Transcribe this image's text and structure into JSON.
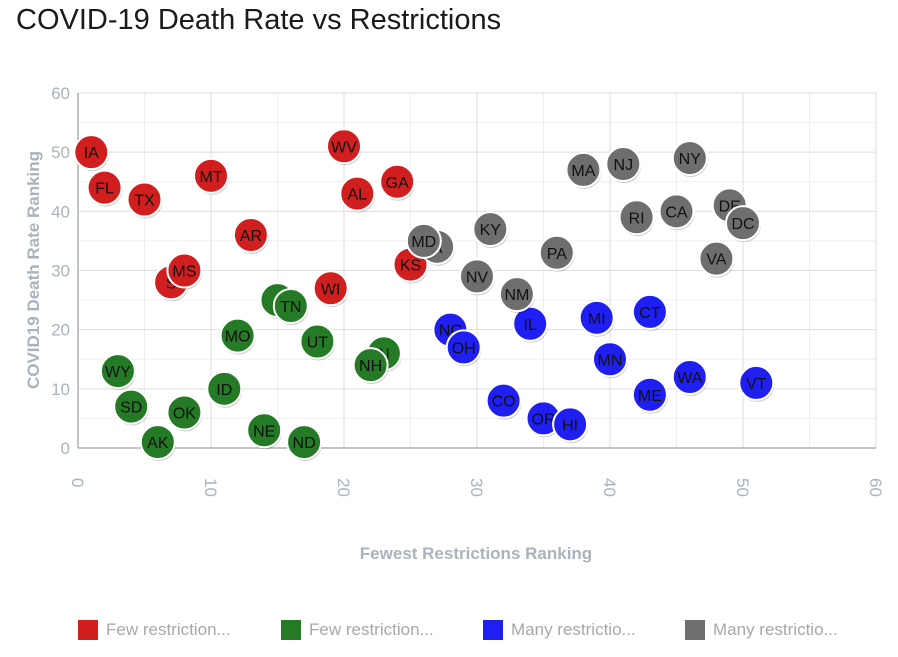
{
  "chart_data": {
    "type": "scatter",
    "title": "COVID-19 Death Rate vs Restrictions",
    "xlabel": "Fewest Restrictions Ranking",
    "ylabel": "COVID19 Death Rate Ranking",
    "xlim": [
      0,
      60
    ],
    "ylim": [
      0,
      60
    ],
    "x_ticks": [
      0,
      10,
      20,
      30,
      40,
      50,
      60
    ],
    "y_ticks": [
      0,
      10,
      20,
      30,
      40,
      50,
      60
    ],
    "grid": true,
    "legend_position": "bottom",
    "series": [
      {
        "name": "Few restriction...",
        "color": "#d11f1f",
        "points": [
          {
            "label": "IA",
            "x": 1,
            "y": 50
          },
          {
            "label": "FL",
            "x": 2,
            "y": 44
          },
          {
            "label": "TX",
            "x": 5,
            "y": 42
          },
          {
            "label": "S",
            "x": 7,
            "y": 28
          },
          {
            "label": "MS",
            "x": 8,
            "y": 30
          },
          {
            "label": "MT",
            "x": 10,
            "y": 46
          },
          {
            "label": "AR",
            "x": 13,
            "y": 36
          },
          {
            "label": "WI",
            "x": 19,
            "y": 27
          },
          {
            "label": "WV",
            "x": 20,
            "y": 51
          },
          {
            "label": "AL",
            "x": 21,
            "y": 43
          },
          {
            "label": "GA",
            "x": 24,
            "y": 45
          },
          {
            "label": "KS",
            "x": 25,
            "y": 31
          }
        ]
      },
      {
        "name": "Few restriction...",
        "color": "#257a25",
        "points": [
          {
            "label": "WY",
            "x": 3,
            "y": 13
          },
          {
            "label": "SD",
            "x": 4,
            "y": 7
          },
          {
            "label": "AK",
            "x": 6,
            "y": 1
          },
          {
            "label": "OK",
            "x": 8,
            "y": 6
          },
          {
            "label": "ID",
            "x": 11,
            "y": 10
          },
          {
            "label": "MO",
            "x": 12,
            "y": 19
          },
          {
            "label": "NE",
            "x": 14,
            "y": 3
          },
          {
            "label": "A",
            "x": 15,
            "y": 25
          },
          {
            "label": "TN",
            "x": 16,
            "y": 24
          },
          {
            "label": "ND",
            "x": 17,
            "y": 1
          },
          {
            "label": "UT",
            "x": 18,
            "y": 18
          },
          {
            "label": "N",
            "x": 23,
            "y": 16
          },
          {
            "label": "NH",
            "x": 22,
            "y": 14
          }
        ]
      },
      {
        "name": "Many restrictio...",
        "color": "#1f1ff2",
        "points": [
          {
            "label": "NC",
            "x": 28,
            "y": 20
          },
          {
            "label": "OH",
            "x": 29,
            "y": 17
          },
          {
            "label": "CO",
            "x": 32,
            "y": 8
          },
          {
            "label": "IL",
            "x": 34,
            "y": 21
          },
          {
            "label": "OR",
            "x": 35,
            "y": 5
          },
          {
            "label": "HI",
            "x": 37,
            "y": 4
          },
          {
            "label": "MI",
            "x": 39,
            "y": 22
          },
          {
            "label": "MN",
            "x": 40,
            "y": 15
          },
          {
            "label": "CT",
            "x": 43,
            "y": 23
          },
          {
            "label": "ME",
            "x": 43,
            "y": 9
          },
          {
            "label": "WA",
            "x": 46,
            "y": 12
          },
          {
            "label": "VT",
            "x": 51,
            "y": 11
          }
        ]
      },
      {
        "name": "Many restrictio...",
        "color": "#6e6e6e",
        "points": [
          {
            "label": "A",
            "x": 27,
            "y": 34
          },
          {
            "label": "MD",
            "x": 26,
            "y": 35
          },
          {
            "label": "NV",
            "x": 30,
            "y": 29
          },
          {
            "label": "KY",
            "x": 31,
            "y": 37
          },
          {
            "label": "NM",
            "x": 33,
            "y": 26
          },
          {
            "label": "PA",
            "x": 36,
            "y": 33
          },
          {
            "label": "MA",
            "x": 38,
            "y": 47
          },
          {
            "label": "NJ",
            "x": 41,
            "y": 48
          },
          {
            "label": "RI",
            "x": 42,
            "y": 39
          },
          {
            "label": "CA",
            "x": 45,
            "y": 40
          },
          {
            "label": "NY",
            "x": 46,
            "y": 49
          },
          {
            "label": "VA",
            "x": 48,
            "y": 32
          },
          {
            "label": "DE",
            "x": 49,
            "y": 41
          },
          {
            "label": "DC",
            "x": 50,
            "y": 38
          }
        ]
      }
    ]
  }
}
